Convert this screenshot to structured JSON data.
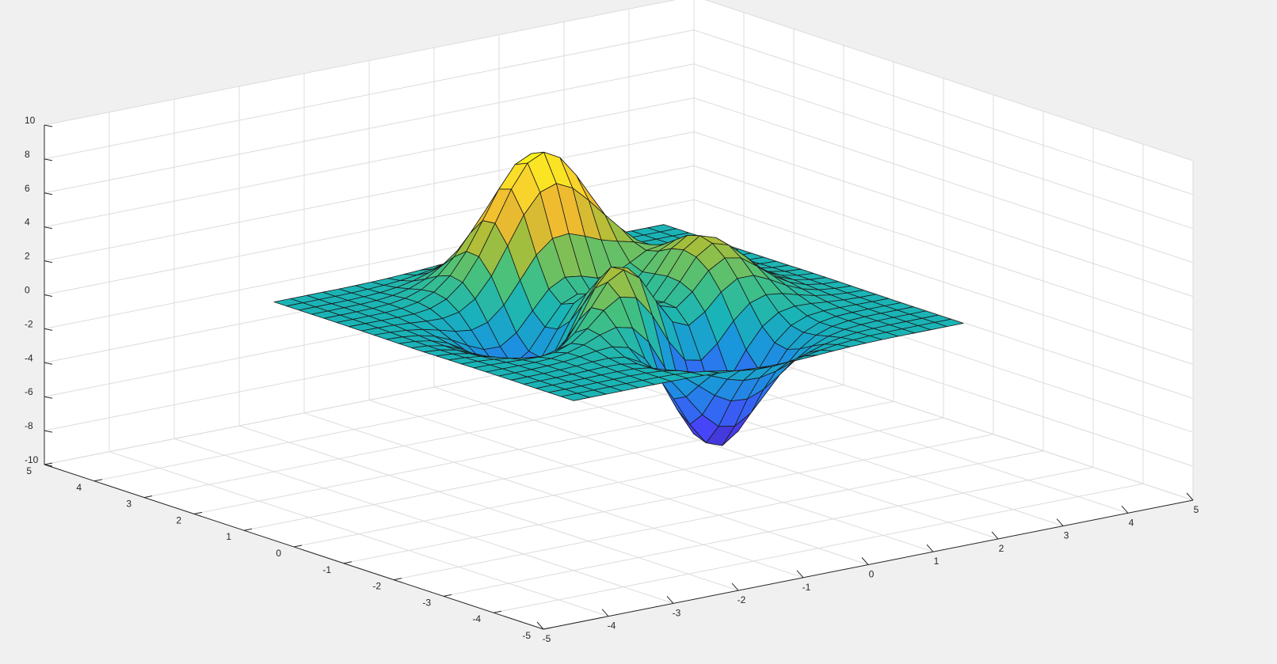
{
  "chart_data": [
    {
      "type": "surface",
      "title": "",
      "xlabel": "",
      "ylabel": "",
      "zlabel": "",
      "xlim": [
        -5,
        5
      ],
      "ylim": [
        -5,
        5
      ],
      "zlim": [
        -10,
        10
      ],
      "xticks": [
        -5,
        -4,
        -3,
        -2,
        -1,
        0,
        1,
        2,
        3,
        4,
        5
      ],
      "yticks": [
        -5,
        -4,
        -3,
        -2,
        -1,
        0,
        1,
        2,
        3,
        4,
        5
      ],
      "zticks": [
        -10,
        -8,
        -6,
        -4,
        -2,
        0,
        2,
        4,
        6,
        8,
        10
      ],
      "grid": true,
      "colormap": "parula",
      "colormap_colors": [
        "#3e26a8",
        "#4743f8",
        "#2f6ff2",
        "#1a96dc",
        "#1ab4b7",
        "#47c17c",
        "#a7be3a",
        "#eeba30",
        "#fad92a",
        "#f9fb14"
      ],
      "surface": {
        "function": "peaks",
        "x_range": [
          -3,
          3
        ],
        "y_range": [
          -3,
          3
        ],
        "points": 25,
        "z_min": -6.55,
        "z_max": 8.11
      },
      "views": [
        "perspective",
        "projection"
      ]
    }
  ]
}
